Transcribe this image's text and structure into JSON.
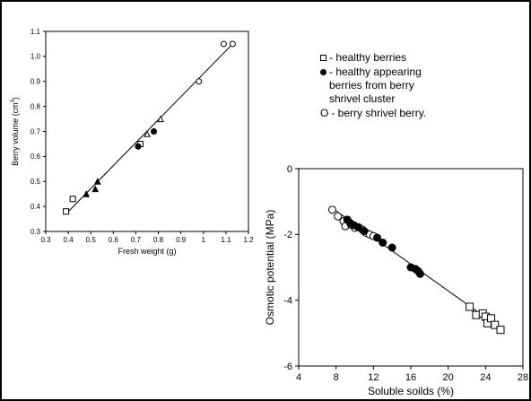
{
  "legend": {
    "items": [
      {
        "symbol": "square",
        "label": "- healthy berries"
      },
      {
        "symbol": "dot",
        "label": "- healthy appearing\nberries from berry\nshrivel cluster"
      },
      {
        "symbol": "letter-o",
        "symbol_text": "O",
        "label": "- berry shrivel berry."
      }
    ]
  },
  "chart_data": [
    {
      "type": "scatter",
      "xlabel": "Fresh weight (g)",
      "ylabel_main": "Berry volume (cm",
      "ylabel_sup": "3",
      "ylabel_tail": ")",
      "xlim": [
        0.3,
        1.2
      ],
      "ylim": [
        0.3,
        1.1
      ],
      "xticks": [
        0.3,
        0.4,
        0.5,
        0.6,
        0.7,
        0.8,
        0.9,
        1.0,
        1.1,
        1.2
      ],
      "xtick_labels": [
        "0.3",
        "0.4",
        "0.5",
        "0.6",
        "0.7",
        "0.8",
        "0.9",
        "1",
        "1.1",
        "1.2"
      ],
      "yticks": [
        0.3,
        0.4,
        0.5,
        0.6,
        0.7,
        0.8,
        0.9,
        1.0,
        1.1
      ],
      "ytick_labels": [
        "0.3",
        "0.4",
        "0.5",
        "0.6",
        "0.7",
        "0.8",
        "0.9",
        "1.0",
        "1.1"
      ],
      "fit_line": {
        "x": [
          0.39,
          1.13
        ],
        "y": [
          0.37,
          1.05
        ]
      },
      "series": [
        {
          "marker": "open-square",
          "points": [
            [
              0.39,
              0.38
            ],
            [
              0.42,
              0.43
            ],
            [
              0.72,
              0.65
            ]
          ]
        },
        {
          "marker": "filled-triangle",
          "points": [
            [
              0.48,
              0.45
            ],
            [
              0.52,
              0.47
            ],
            [
              0.53,
              0.5
            ]
          ]
        },
        {
          "marker": "open-triangle",
          "points": [
            [
              0.75,
              0.69
            ],
            [
              0.81,
              0.75
            ]
          ]
        },
        {
          "marker": "filled-circle",
          "points": [
            [
              0.71,
              0.64
            ],
            [
              0.78,
              0.7
            ]
          ]
        },
        {
          "marker": "open-circle",
          "points": [
            [
              0.98,
              0.9
            ],
            [
              1.09,
              1.05
            ],
            [
              1.13,
              1.05
            ]
          ]
        }
      ]
    },
    {
      "type": "scatter",
      "xlabel": "Soluble soilds (%)",
      "ylabel": "Osmotic potential (MPa)",
      "xlim": [
        4,
        28
      ],
      "ylim": [
        -6,
        0
      ],
      "xticks": [
        4,
        8,
        12,
        16,
        20,
        24,
        28
      ],
      "xtick_labels": [
        "4",
        "8",
        "12",
        "16",
        "20",
        "24",
        "28"
      ],
      "yticks": [
        -6,
        -4,
        -2,
        0
      ],
      "ytick_labels": [
        "-6",
        "-4",
        "-2",
        "0"
      ],
      "fit_line": {
        "x": [
          7.6,
          25.6
        ],
        "y": [
          -1.2,
          -4.85
        ]
      },
      "series": [
        {
          "marker": "open-circle",
          "points": [
            [
              7.6,
              -1.25
            ],
            [
              8.2,
              -1.45
            ],
            [
              8.8,
              -1.6
            ],
            [
              9.0,
              -1.75
            ],
            [
              9.6,
              -1.7
            ],
            [
              10.0,
              -1.8
            ],
            [
              10.8,
              -1.85
            ],
            [
              11.2,
              -1.95
            ],
            [
              11.6,
              -2.0
            ],
            [
              12.0,
              -2.05
            ]
          ]
        },
        {
          "marker": "filled-circle",
          "points": [
            [
              9.2,
              -1.55
            ],
            [
              9.5,
              -1.65
            ],
            [
              9.9,
              -1.72
            ],
            [
              10.4,
              -1.78
            ],
            [
              11.0,
              -1.9
            ],
            [
              12.4,
              -2.1
            ],
            [
              13.0,
              -2.25
            ],
            [
              14.0,
              -2.4
            ],
            [
              16.0,
              -3.0
            ],
            [
              16.5,
              -3.05
            ],
            [
              16.8,
              -3.12
            ],
            [
              17.0,
              -3.2
            ]
          ]
        },
        {
          "marker": "open-square",
          "points": [
            [
              22.3,
              -4.2
            ],
            [
              23.0,
              -4.45
            ],
            [
              23.7,
              -4.4
            ],
            [
              24.0,
              -4.5
            ],
            [
              24.2,
              -4.7
            ],
            [
              24.6,
              -4.55
            ],
            [
              25.0,
              -4.75
            ],
            [
              25.6,
              -4.9
            ]
          ]
        }
      ]
    }
  ]
}
